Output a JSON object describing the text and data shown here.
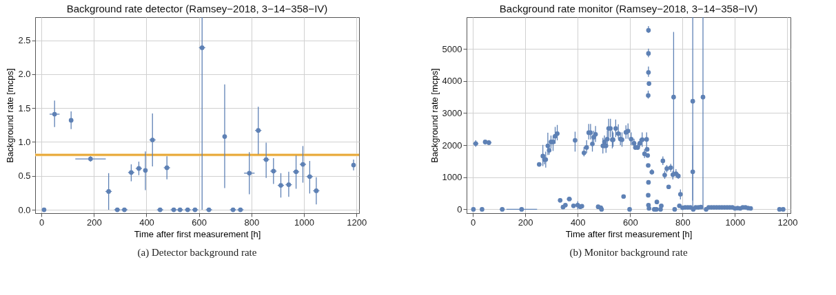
{
  "chart_data": [
    {
      "type": "scatter",
      "title": "Background rate detector (Ramsey−2018, 3−14−358−IV)",
      "xlabel": "Time after first measurement [h]",
      "ylabel": "Background rate [mcps]",
      "color": "#5e81b5",
      "marker": "circle",
      "grid": true,
      "xlim": [
        -24,
        1210
      ],
      "ylim": [
        -0.05,
        2.84
      ],
      "xticks": [
        0,
        200,
        400,
        600,
        800,
        1000,
        1200
      ],
      "yticks": [
        {
          "value": 0,
          "label": "0.0"
        },
        {
          "value": 0.5,
          "label": "0.5"
        },
        {
          "value": 1,
          "label": "1.0"
        },
        {
          "value": 1.5,
          "label": "1.5"
        },
        {
          "value": 2,
          "label": "2.0"
        },
        {
          "value": 2.5,
          "label": "2.5"
        }
      ],
      "x": [
        10,
        50,
        113,
        187,
        256,
        289,
        316,
        342,
        371,
        396,
        423,
        452,
        478,
        504,
        528,
        557,
        585,
        612,
        638,
        698,
        730,
        758,
        792,
        826,
        856,
        884,
        912,
        942,
        970,
        996,
        1022,
        1047,
        1189
      ],
      "values": [
        0,
        1.41,
        1.32,
        0.75,
        0.27,
        0,
        0,
        0.55,
        0.61,
        0.58,
        1.03,
        0,
        0.62,
        0,
        0,
        0,
        0,
        2.39,
        0,
        1.08,
        0,
        0,
        0.54,
        1.17,
        0.74,
        0.57,
        0.36,
        0.37,
        0.56,
        0.67,
        0.49,
        0.28,
        0.66
      ],
      "errors": [
        null,
        [
          1.22,
          1.61
        ],
        [
          1.19,
          1.45
        ],
        [
          0.71,
          0.79
        ],
        [
          0,
          0.54
        ],
        null,
        null,
        [
          0.42,
          0.67
        ],
        [
          0.51,
          0.71
        ],
        [
          0.29,
          0.86
        ],
        [
          0.64,
          1.42
        ],
        null,
        [
          0.45,
          0.79
        ],
        null,
        null,
        null,
        null,
        [
          0,
          2.84
        ],
        null,
        [
          0.32,
          1.85
        ],
        null,
        null,
        [
          0.23,
          0.85
        ],
        [
          0.82,
          1.52
        ],
        [
          0.47,
          0.99
        ],
        [
          0.38,
          0.76
        ],
        [
          0.18,
          0.54
        ],
        [
          0.19,
          0.56
        ],
        [
          0.31,
          0.8
        ],
        [
          0.4,
          0.94
        ],
        [
          0.24,
          0.72
        ],
        [
          0.08,
          0.48
        ],
        [
          0.58,
          0.74
        ]
      ],
      "xerrors": [
        8,
        19,
        8,
        58,
        12,
        12,
        12,
        12,
        12,
        8,
        12,
        12,
        12,
        12,
        12,
        12,
        12,
        12,
        12,
        null,
        12,
        12,
        20,
        12,
        12,
        12,
        12,
        12,
        12,
        12,
        12,
        12,
        8
      ],
      "ref_lines": [
        {
          "axis": "y",
          "value": 0.81,
          "color": "#e5a12a"
        }
      ],
      "bands": [
        {
          "axis": "y",
          "from": 0.79,
          "to": 0.83,
          "color": "#f6d38f"
        }
      ],
      "annotations": [
        "(a) Detector background rate"
      ]
    },
    {
      "type": "scatter",
      "title": "Background rate monitor (Ramsey−2018, 3−14−358−IV)",
      "xlabel": "Time after first measurement [h]",
      "ylabel": "Background rate [mcps]",
      "color": "#5e81b5",
      "marker": "circle",
      "grid": true,
      "xlim": [
        -24,
        1212
      ],
      "ylim": [
        -120,
        5990
      ],
      "xticks": [
        0,
        200,
        400,
        600,
        800,
        1000,
        1200
      ],
      "yticks": [
        0,
        1000,
        2000,
        3000,
        4000,
        5000
      ],
      "x": [
        2,
        11,
        35,
        47,
        61,
        112,
        186,
        253,
        267,
        273,
        278,
        286,
        291,
        298,
        306,
        314,
        322,
        333,
        344,
        353,
        368,
        384,
        390,
        400,
        410,
        416,
        424,
        434,
        442,
        449,
        456,
        461,
        468,
        478,
        488,
        491,
        496,
        502,
        508,
        513,
        518,
        525,
        532,
        535,
        545,
        555,
        563,
        569,
        575,
        584,
        592,
        598,
        604,
        615,
        620,
        629,
        637,
        646,
        655,
        663,
        665,
        667,
        669,
        669,
        672,
        670,
        670,
        670,
        670,
        669,
        670,
        672,
        683,
        692,
        700,
        702,
        716,
        719,
        725,
        732,
        740,
        747,
        755,
        763,
        766,
        770,
        775,
        784,
        788,
        792,
        800,
        810,
        820,
        830,
        850,
        860,
        870,
        890,
        900,
        910,
        920,
        930,
        940,
        950,
        960,
        970,
        980,
        990,
        1000,
        1010,
        1020,
        1030,
        1040,
        1050,
        1060,
        839,
        839,
        841,
        878,
        1170,
        1184
      ],
      "values": [
        0,
        2050,
        0,
        2100,
        2080,
        0,
        0,
        1400,
        1660,
        1550,
        1550,
        1980,
        1840,
        2100,
        2100,
        2280,
        2360,
        280,
        70,
        130,
        320,
        110,
        2150,
        130,
        80,
        100,
        1760,
        1930,
        2390,
        2390,
        2040,
        2250,
        2340,
        80,
        50,
        0,
        1980,
        2100,
        1980,
        2190,
        2520,
        2520,
        2170,
        2170,
        2520,
        2360,
        2190,
        2170,
        400,
        2400,
        2440,
        0,
        2190,
        2060,
        1930,
        1930,
        2060,
        2170,
        1730,
        2180,
        1870,
        1680,
        1370,
        3550,
        3920,
        4270,
        4860,
        5580,
        840,
        440,
        130,
        30,
        1160,
        0,
        0,
        230,
        0,
        110,
        1510,
        1070,
        1270,
        700,
        1300,
        1080,
        3500,
        0,
        1110,
        1040,
        110,
        470,
        50,
        60,
        60,
        60,
        60,
        60,
        70,
        0,
        60,
        60,
        60,
        60,
        60,
        60,
        60,
        60,
        60,
        60,
        30,
        40,
        30,
        60,
        60,
        40,
        30,
        3370,
        1170,
        0,
        3500,
        0,
        0
      ],
      "errors": [
        null,
        [
          1950,
          2150
        ],
        null,
        [
          2020,
          2160
        ],
        [
          2000,
          2160
        ],
        null,
        null,
        null,
        [
          1350,
          2010
        ],
        [
          1400,
          1700
        ],
        [
          1300,
          1800
        ],
        [
          1690,
          2390
        ],
        [
          1700,
          2000
        ],
        [
          1900,
          2300
        ],
        [
          1820,
          2300
        ],
        [
          2050,
          2570
        ],
        [
          2150,
          2630
        ],
        null,
        null,
        null,
        null,
        null,
        [
          1800,
          2420
        ],
        [
          0,
          250
        ],
        null,
        null,
        [
          1650,
          1950
        ],
        [
          1750,
          2150
        ],
        [
          2180,
          2660
        ],
        [
          2180,
          2660
        ],
        [
          1800,
          2210
        ],
        [
          2100,
          2450
        ],
        [
          2100,
          2600
        ],
        null,
        null,
        null,
        [
          1740,
          2230
        ],
        [
          1900,
          2300
        ],
        [
          1760,
          2200
        ],
        [
          2000,
          2450
        ],
        [
          2250,
          2820
        ],
        [
          2250,
          2820
        ],
        [
          1900,
          2450
        ],
        [
          1950,
          2400
        ],
        [
          2250,
          2800
        ],
        [
          2200,
          2650
        ],
        [
          2000,
          2400
        ],
        [
          1950,
          2400
        ],
        null,
        [
          2200,
          2620
        ],
        [
          2200,
          2680
        ],
        null,
        [
          2000,
          2400
        ],
        [
          1900,
          2200
        ],
        [
          1850,
          2050
        ],
        [
          1850,
          2050
        ],
        [
          1950,
          2200
        ],
        [
          1950,
          2400
        ],
        [
          1600,
          1880
        ],
        [
          1800,
          2400
        ],
        null,
        null,
        null,
        [
          3450,
          3700
        ],
        [
          3870,
          3980
        ],
        [
          4130,
          4450
        ],
        [
          4740,
          5010
        ],
        [
          5500,
          5710
        ],
        [
          780,
          900
        ],
        [
          380,
          500
        ],
        null,
        null,
        [
          1090,
          1250
        ],
        null,
        null,
        [
          170,
          290
        ],
        null,
        null,
        [
          1380,
          1650
        ],
        [
          950,
          1200
        ],
        [
          1150,
          1380
        ],
        [
          650,
          760
        ],
        [
          1170,
          1420
        ],
        [
          930,
          1200
        ],
        [
          1090,
          5530
        ],
        null,
        [
          1000,
          1250
        ],
        [
          950,
          1130
        ],
        null,
        [
          310,
          620
        ],
        null,
        null,
        null,
        null,
        null,
        null,
        null,
        null,
        null,
        null,
        null,
        null,
        null,
        null,
        null,
        null,
        null,
        null,
        null,
        null,
        null,
        null,
        null,
        null,
        null,
        [
          0,
          5990
        ],
        [
          270,
          2000
        ],
        null,
        [
          0,
          5990
        ],
        null,
        null
      ],
      "xerrors": [
        null,
        10,
        5,
        6,
        10,
        10,
        [
          128,
          245
        ],
        8,
        null,
        null,
        null,
        null,
        null,
        null,
        null,
        null,
        null,
        6,
        null,
        null,
        10,
        null,
        null,
        null,
        null,
        null,
        null,
        null,
        null,
        null,
        null,
        null,
        null,
        6,
        null,
        null,
        null,
        null,
        null,
        null,
        null,
        null,
        null,
        null,
        null,
        null,
        null,
        null,
        null,
        null,
        null,
        null,
        null,
        null,
        null,
        null,
        null,
        null,
        null,
        null,
        null,
        null,
        null,
        null,
        null,
        null,
        null,
        null,
        null,
        null,
        null,
        null,
        8,
        null,
        null,
        null,
        null,
        null,
        null,
        null,
        null,
        null,
        null,
        null,
        null,
        null,
        null,
        null,
        null,
        null,
        null,
        null,
        null,
        null,
        null,
        null,
        null,
        null,
        null,
        null,
        null,
        null,
        null,
        null,
        null,
        null,
        null,
        null,
        null,
        null,
        null,
        null,
        null,
        null,
        null,
        null,
        null,
        null,
        null,
        6,
        null
      ],
      "annotations": [
        "(b) Monitor background rate"
      ]
    }
  ]
}
